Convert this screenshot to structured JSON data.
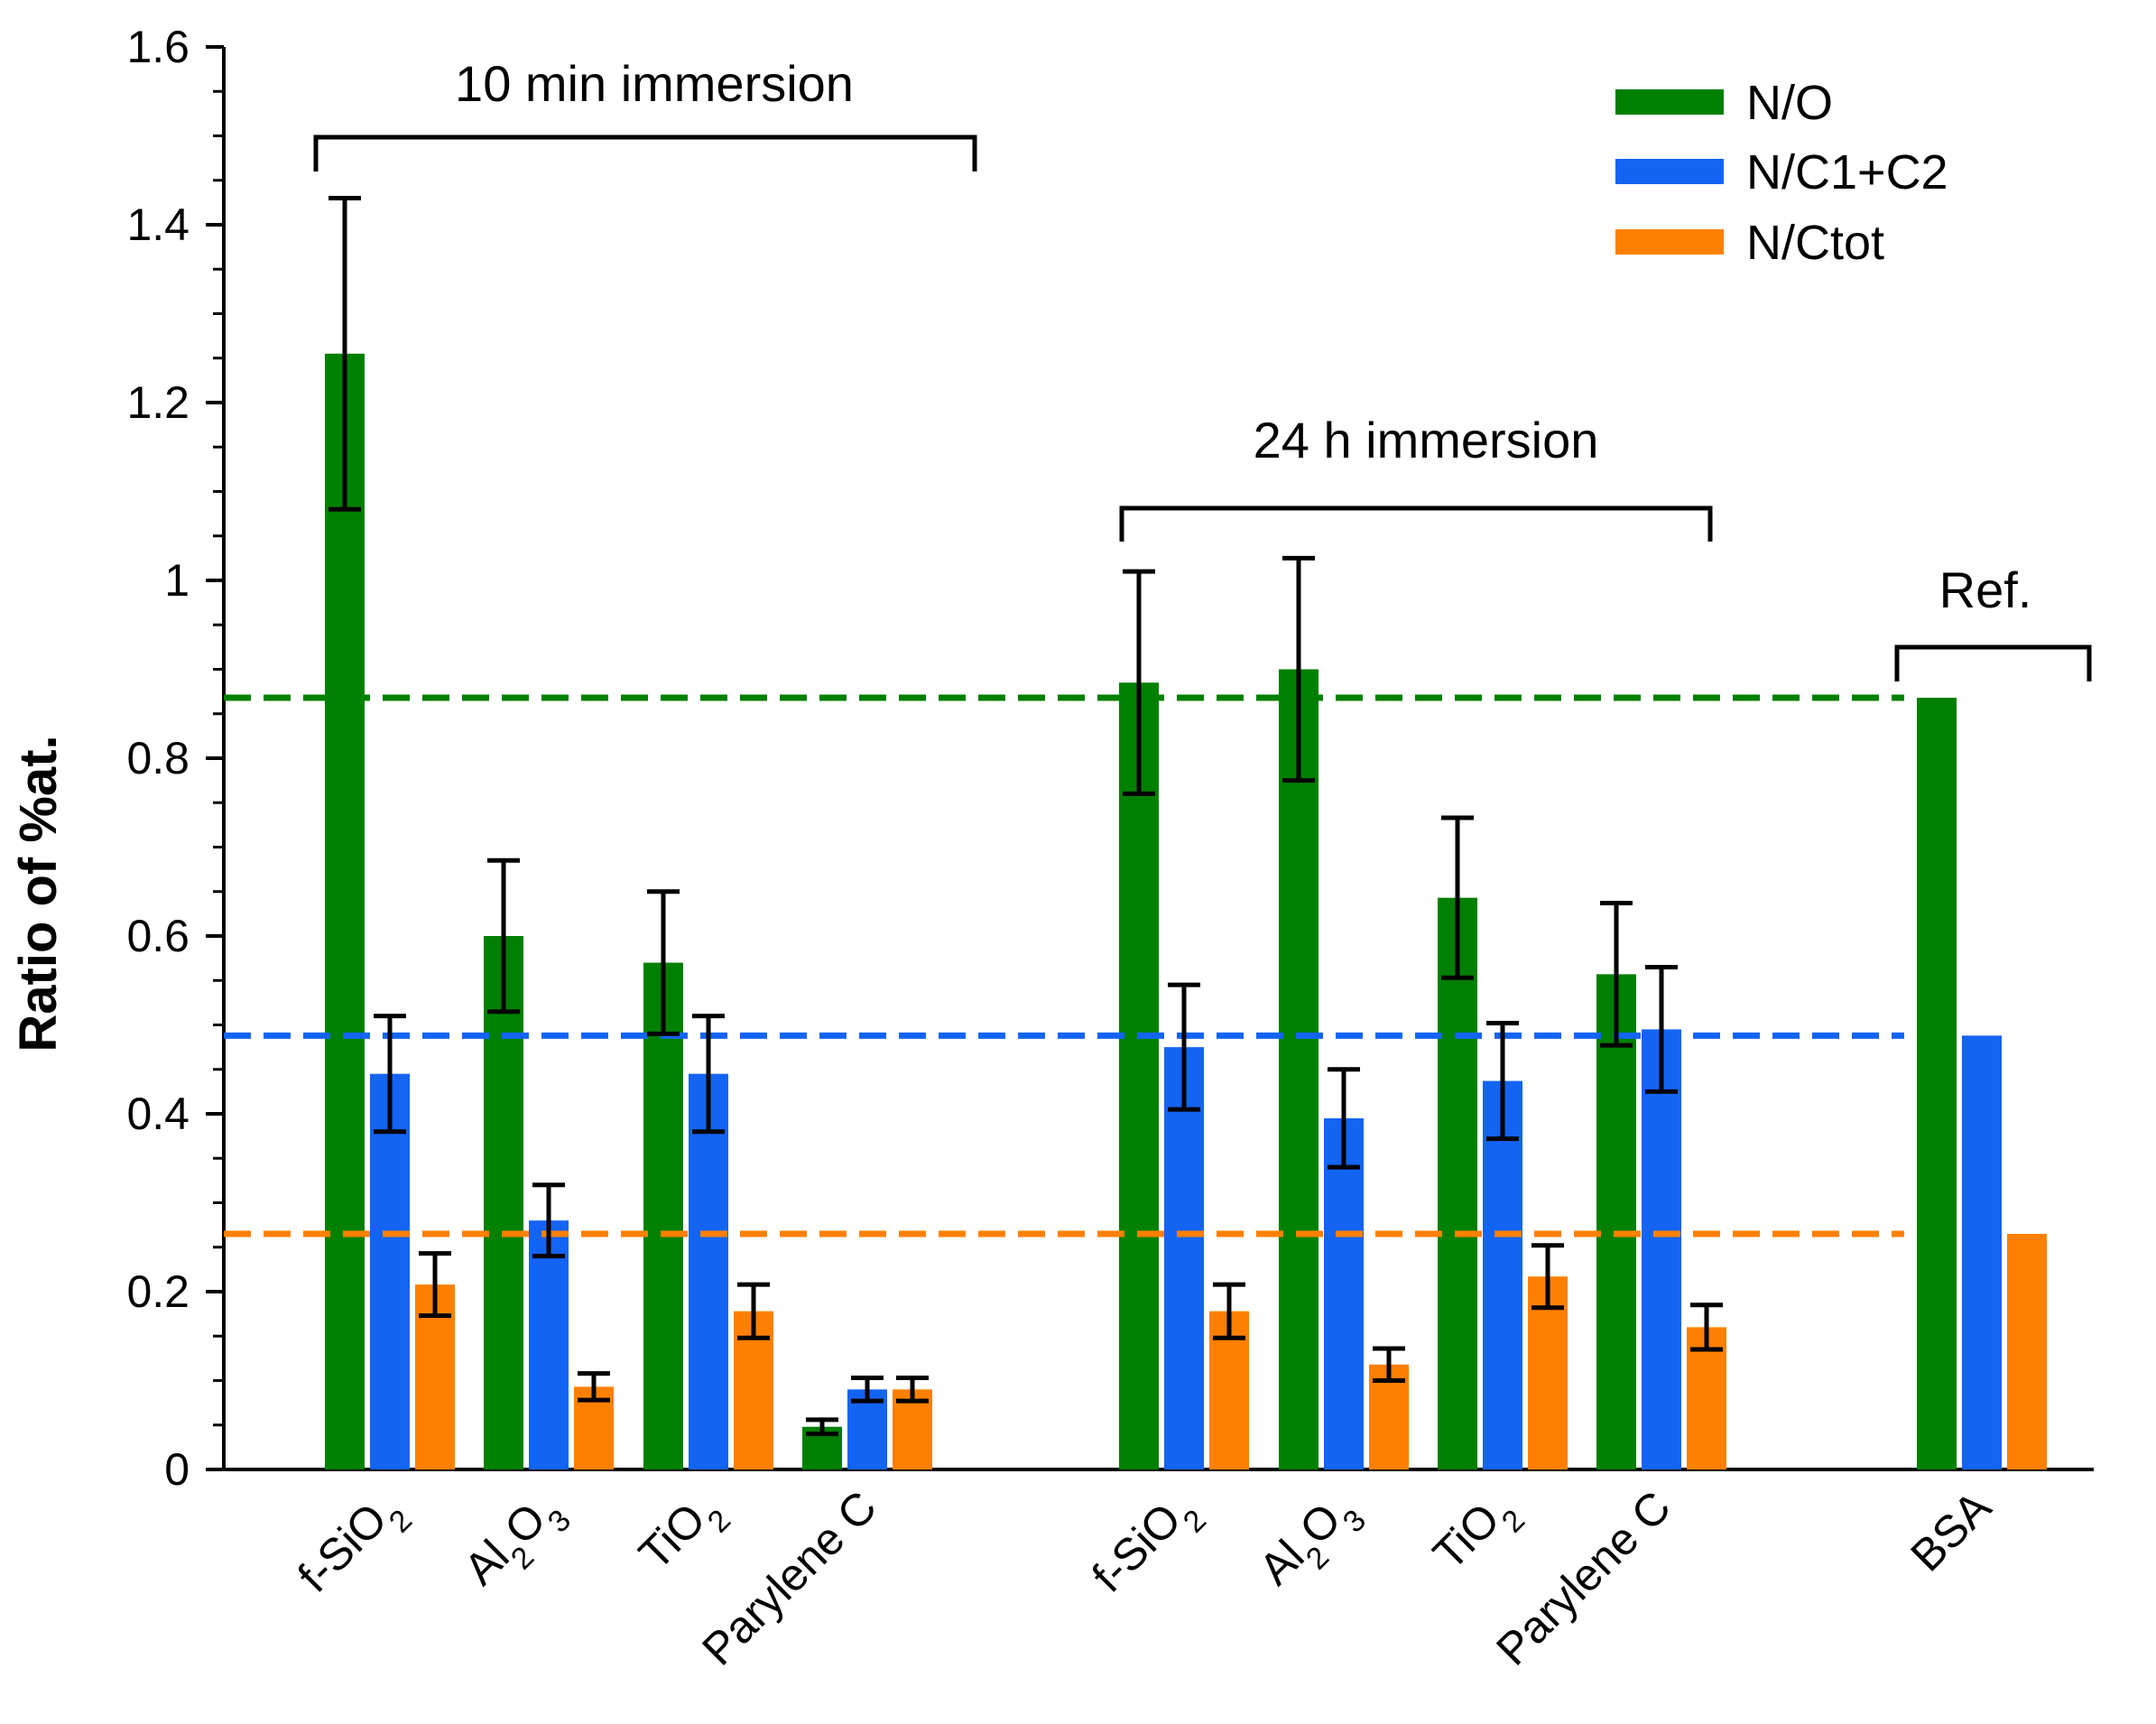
{
  "chart_data": {
    "type": "bar",
    "ylabel": "Ratio of %at.",
    "ylim": [
      0,
      1.6
    ],
    "yticks": [
      "0",
      "0.2",
      "0.4",
      "0.6",
      "0.8",
      "1",
      "1.2",
      "1.4",
      "1.6"
    ],
    "ytick_values": [
      0,
      0.2,
      0.4,
      0.6,
      0.8,
      1.0,
      1.2,
      1.4,
      1.6
    ],
    "legend_position": "top-right",
    "series": [
      {
        "name": "N/O",
        "color": "#008000"
      },
      {
        "name": "N/C1+C2",
        "color": "#1464F4"
      },
      {
        "name": "N/Ctot",
        "color": "#FF8000"
      }
    ],
    "groups": [
      {
        "label": "10 min immersion",
        "categories": [
          {
            "label_main": "f-SiO",
            "label_sub": "2",
            "label_tail": "",
            "values": [
              1.255,
              0.445,
              0.208
            ],
            "errors": [
              0.175,
              0.065,
              0.035
            ]
          },
          {
            "label_main": "Al",
            "label_sub": "2",
            "label_tail": "O",
            "label_sub2": "3",
            "values": [
              0.6,
              0.28,
              0.093
            ],
            "errors": [
              0.085,
              0.04,
              0.015
            ]
          },
          {
            "label_main": "TiO",
            "label_sub": "2",
            "label_tail": "",
            "values": [
              0.57,
              0.445,
              0.178
            ],
            "errors": [
              0.08,
              0.065,
              0.03
            ]
          },
          {
            "label_main": "Parylene C",
            "label_sub": "",
            "label_tail": "",
            "values": [
              0.048,
              0.09,
              0.09
            ],
            "errors": [
              0.008,
              0.013,
              0.013
            ]
          }
        ]
      },
      {
        "label": "24 h immersion",
        "categories": [
          {
            "label_main": "f-SiO",
            "label_sub": "2",
            "label_tail": "",
            "values": [
              0.885,
              0.475,
              0.178
            ],
            "errors": [
              0.125,
              0.07,
              0.03
            ]
          },
          {
            "label_main": "Al",
            "label_sub": "2",
            "label_tail": "O",
            "label_sub2": "3",
            "values": [
              0.9,
              0.395,
              0.118
            ],
            "errors": [
              0.125,
              0.055,
              0.018
            ]
          },
          {
            "label_main": "TiO",
            "label_sub": "2",
            "label_tail": "",
            "values": [
              0.643,
              0.437,
              0.217
            ],
            "errors": [
              0.09,
              0.065,
              0.035
            ]
          },
          {
            "label_main": "Parylene C",
            "label_sub": "",
            "label_tail": "",
            "values": [
              0.557,
              0.495,
              0.16
            ],
            "errors": [
              0.08,
              0.07,
              0.025
            ]
          }
        ]
      },
      {
        "label": "Ref.",
        "categories": [
          {
            "label_main": "BSA",
            "label_sub": "",
            "label_tail": "",
            "values": [
              0.868,
              0.488,
              0.265
            ],
            "errors": [
              null,
              null,
              null
            ]
          }
        ]
      }
    ],
    "reference_lines": [
      {
        "series": "N/O",
        "value": 0.868,
        "color": "#008000"
      },
      {
        "series": "N/C1+C2",
        "value": 0.488,
        "color": "#1464F4"
      },
      {
        "series": "N/Ctot",
        "value": 0.265,
        "color": "#FF8000"
      }
    ]
  }
}
